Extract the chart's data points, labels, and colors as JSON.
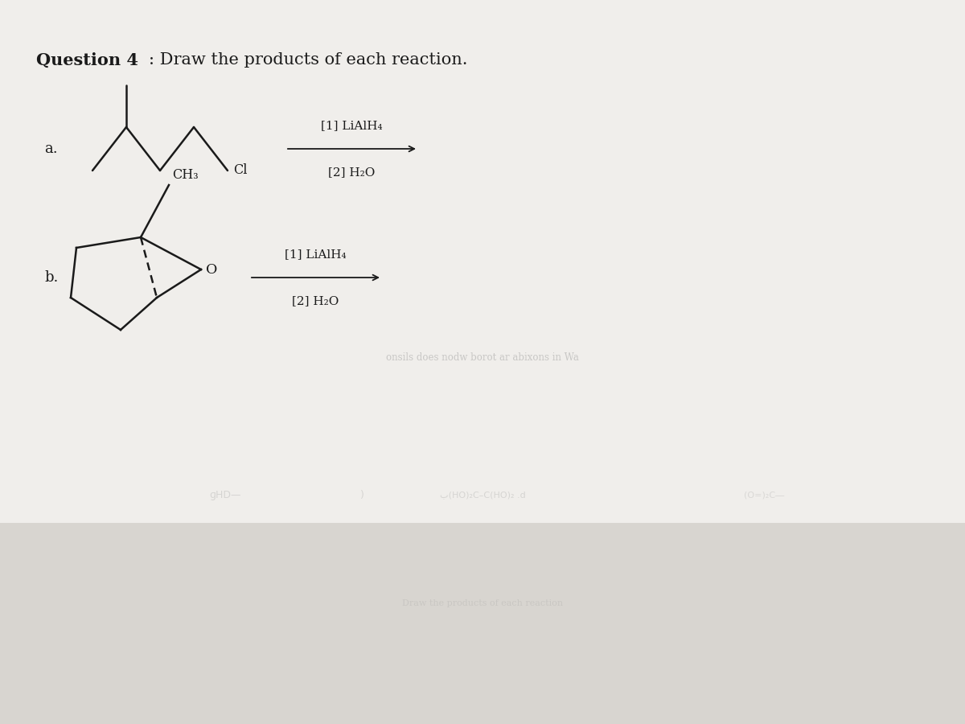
{
  "bg_color": "#d8d5d0",
  "title_bold": "Question 4",
  "title_normal": ": Draw the products of each reaction.",
  "title_fontsize": 15,
  "label_a": "a.",
  "label_b": "b.",
  "label_fontsize": 13,
  "reaction_line1": "[1] LiAlH₄",
  "reaction_line2": "[2] H₂O",
  "reaction_fontsize": 11,
  "line_color": "#1a1a1a",
  "text_color": "#1a1a1a",
  "faded_text_color": "#888888",
  "paper_color": "#f0eeeb"
}
